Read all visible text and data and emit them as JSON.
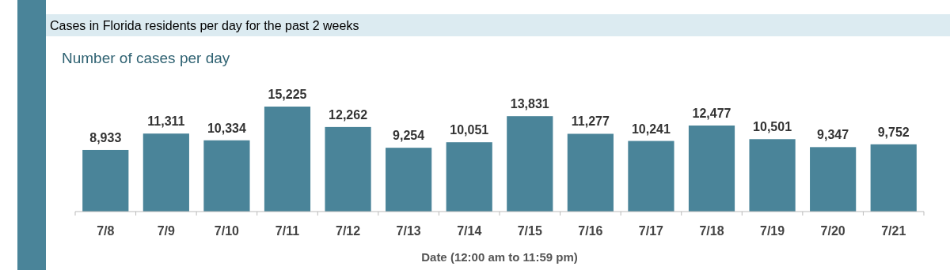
{
  "chart_data": {
    "type": "bar",
    "title": "Cases in Florida residents per day for the past 2 weeks",
    "subtitle": "Number of cases per day",
    "xlabel": "Date (12:00 am to 11:59 pm)",
    "categories": [
      "7/8",
      "7/9",
      "7/10",
      "7/11",
      "7/12",
      "7/13",
      "7/14",
      "7/15",
      "7/16",
      "7/17",
      "7/18",
      "7/19",
      "7/20",
      "7/21"
    ],
    "values": [
      8933,
      11311,
      10334,
      15225,
      12262,
      9254,
      10051,
      13831,
      11277,
      10241,
      12477,
      10501,
      9347,
      9752
    ],
    "value_labels": [
      "8,933",
      "11,311",
      "10,334",
      "15,225",
      "12,262",
      "9,254",
      "10,051",
      "13,831",
      "11,277",
      "10,241",
      "12,477",
      "10,501",
      "9,347",
      "9,752"
    ],
    "color": "#4a8499",
    "tick_labels": "x"
  }
}
